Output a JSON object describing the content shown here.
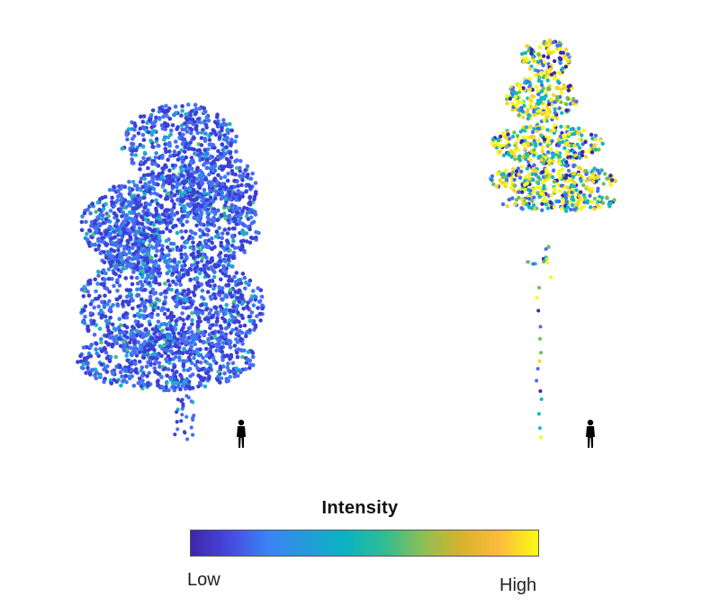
{
  "colorbar": {
    "title": "Intensity",
    "low_label": "Low",
    "high_label": "High",
    "gradient_stops": [
      "#3e26a8",
      "#4748e0",
      "#3b83f5",
      "#259bda",
      "#0ab3c2",
      "#2fbc93",
      "#8bbf56",
      "#d7b22e",
      "#fcbc3c",
      "#f9fa14"
    ]
  },
  "trees": [
    {
      "name": "broadleaf-tree",
      "dominant_colors": [
        "#3b3fd6",
        "#4a6cf2",
        "#2f86f0",
        "#1ab0c9",
        "#46c08a"
      ]
    },
    {
      "name": "conifer-tree",
      "dominant_colors": [
        "#f5d628",
        "#f9fa14",
        "#12b7c4",
        "#4a6cf2",
        "#3e26a8",
        "#6cc15a"
      ]
    }
  ],
  "scale_figures": [
    "person-silhouette",
    "person-silhouette"
  ]
}
